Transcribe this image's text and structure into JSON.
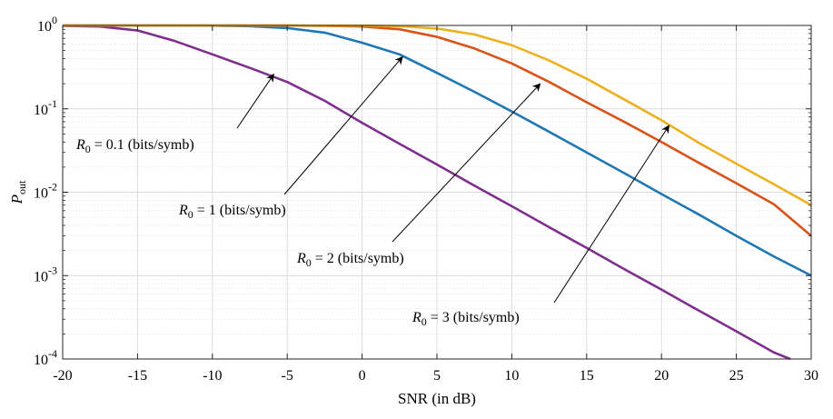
{
  "chart_data": {
    "type": "line",
    "xlabel": "SNR (in dB)",
    "ylabel_main": "P",
    "ylabel_sub": "out",
    "xlim": [
      -20,
      30
    ],
    "ylim": [
      0.0001,
      1
    ],
    "y_scale": "log",
    "grid": true,
    "x_ticks": [
      -20,
      -15,
      -10,
      -5,
      0,
      5,
      10,
      15,
      20,
      25,
      30
    ],
    "x_tick_labels": [
      "-20",
      "-15",
      "-10",
      "-5",
      "0",
      "5",
      "10",
      "15",
      "20",
      "25",
      "30"
    ],
    "y_ticks": [
      {
        "value": 1,
        "base": "10",
        "exp": "0"
      },
      {
        "value": 0.1,
        "base": "10",
        "exp": "-1"
      },
      {
        "value": 0.01,
        "base": "10",
        "exp": "-2"
      },
      {
        "value": 0.001,
        "base": "10",
        "exp": "-3"
      },
      {
        "value": 0.0001,
        "base": "10",
        "exp": "-4"
      }
    ],
    "series": [
      {
        "label_var": "R",
        "label_sub": "0",
        "label_rest": " = 0.1 (bits/symb)",
        "color": "#7E2F8E",
        "x": [
          -20,
          -17.5,
          -15,
          -12.5,
          -10,
          -7.5,
          -5,
          -2.5,
          0,
          2.5,
          5,
          7.5,
          10,
          12.5,
          15,
          17.5,
          20,
          22.5,
          25,
          27.5,
          28.6
        ],
        "y": [
          0.99,
          0.97,
          0.87,
          0.65,
          0.45,
          0.31,
          0.21,
          0.125,
          0.068,
          0.038,
          0.0215,
          0.012,
          0.0068,
          0.0038,
          0.00215,
          0.0012,
          0.00068,
          0.00038,
          0.000215,
          0.00012,
          0.0001
        ],
        "arrow_tip": [
          -5.9,
          0.26
        ]
      },
      {
        "label_var": "R",
        "label_sub": "0",
        "label_rest": " = 1 (bits/symb)",
        "color": "#1f77b4",
        "x": [
          -20,
          -15,
          -10,
          -7.5,
          -5,
          -2.5,
          0,
          2.5,
          5,
          7.5,
          10,
          12.5,
          15,
          17.5,
          20,
          22.5,
          25,
          27.5,
          30
        ],
        "y": [
          1.0,
          1.0,
          0.995,
          0.98,
          0.93,
          0.82,
          0.62,
          0.45,
          0.27,
          0.16,
          0.093,
          0.053,
          0.03,
          0.017,
          0.0095,
          0.0054,
          0.003,
          0.0017,
          0.001
        ],
        "arrow_tip": [
          2.7,
          0.42
        ]
      },
      {
        "label_var": "R",
        "label_sub": "0",
        "label_rest": " = 2 (bits/symb)",
        "color": "#D95319",
        "x": [
          -20,
          -10,
          -5,
          -2.5,
          0,
          2.5,
          5,
          7.5,
          10,
          12.5,
          15,
          17.5,
          20,
          22.5,
          25,
          27.5,
          30
        ],
        "y": [
          1.0,
          1.0,
          0.998,
          0.99,
          0.97,
          0.9,
          0.73,
          0.53,
          0.35,
          0.21,
          0.12,
          0.07,
          0.04,
          0.0225,
          0.0128,
          0.0072,
          0.003
        ],
        "arrow_tip": [
          11.9,
          0.2
        ]
      },
      {
        "label_var": "R",
        "label_sub": "0",
        "label_rest": " = 3 (bits/symb)",
        "color": "#EDB120",
        "x": [
          -20,
          -10,
          -5,
          0,
          2.5,
          5,
          7.5,
          10,
          12.5,
          15,
          17.5,
          20,
          22.5,
          25,
          27.5,
          30
        ],
        "y": [
          1.0,
          1.0,
          1.0,
          0.995,
          0.98,
          0.92,
          0.78,
          0.58,
          0.38,
          0.23,
          0.13,
          0.073,
          0.039,
          0.022,
          0.0125,
          0.007
        ],
        "arrow_tip": [
          20.5,
          0.063
        ]
      }
    ]
  }
}
